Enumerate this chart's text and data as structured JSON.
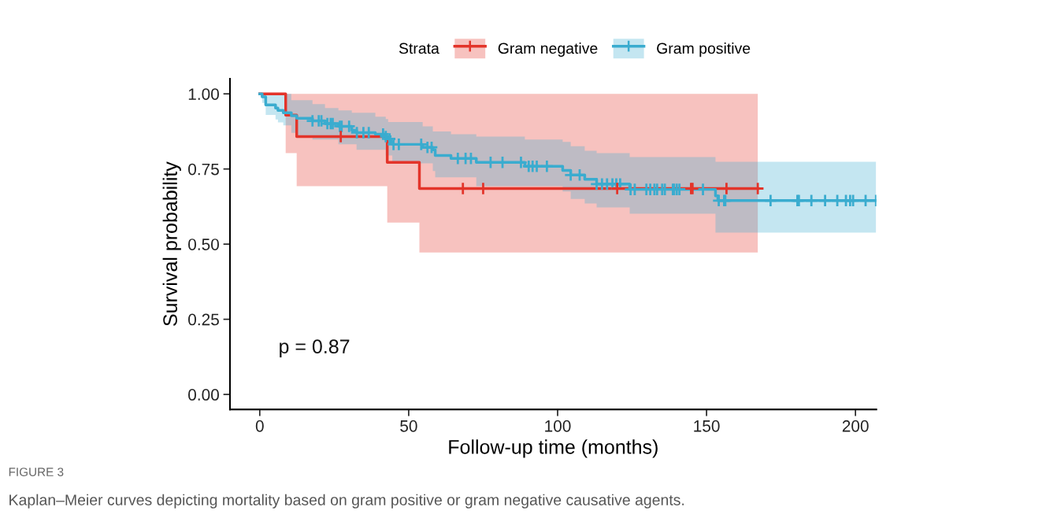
{
  "chart_data": {
    "type": "step",
    "xlabel": "Follow-up time (months)",
    "ylabel": "Survival probability",
    "legend_title": "Strata",
    "legend": "top",
    "grid": false,
    "xlim": [
      -10,
      207
    ],
    "xticks": [
      0,
      50,
      100,
      150,
      200
    ],
    "ylim": [
      -0.05,
      1.05
    ],
    "yticks": [
      {
        "value": 0,
        "label": "0.00"
      },
      {
        "value": 0.25,
        "label": "0.25"
      },
      {
        "value": 0.5,
        "label": "0.50"
      },
      {
        "value": 0.75,
        "label": "0.75"
      },
      {
        "value": 1,
        "label": "1.00"
      }
    ],
    "annotations": [
      "p = 0.87",
      "FIGURE 3",
      "Kaplan–Meier curves depicting mortality based on gram positive or gram negative causative agents."
    ],
    "series": [
      {
        "name": "Gram negative",
        "color": "#e3342a",
        "x": [
          0,
          8.7,
          12.4,
          42.8,
          53.6,
          167.2
        ],
        "values": [
          1.0,
          0.929,
          0.858,
          0.772,
          0.685,
          0.685
        ],
        "lower": [
          1.0,
          0.803,
          0.693,
          0.572,
          0.472,
          0.472
        ],
        "upper": [
          1.0,
          1.0,
          1.0,
          1.0,
          1.0,
          1.0
        ]
      },
      {
        "name": "Gram positive",
        "color": "#3aaccf",
        "x": [
          0,
          0.8,
          2,
          5.3,
          6.1,
          7.9,
          10.6,
          12.4,
          17.7,
          21.9,
          26.4,
          30.9,
          32.5,
          38.8,
          42.3,
          43.1,
          44.1,
          44.5,
          54.7,
          58.1,
          58.9,
          64.2,
          72.7,
          89.0,
          101.7,
          104.4,
          109.1,
          113.1,
          124.2,
          153.0,
          153.8,
          206.9
        ],
        "values": [
          1.0,
          0.99,
          0.963,
          0.953,
          0.945,
          0.937,
          0.927,
          0.919,
          0.91,
          0.901,
          0.892,
          0.879,
          0.871,
          0.866,
          0.858,
          0.85,
          0.84,
          0.832,
          0.822,
          0.814,
          0.795,
          0.785,
          0.772,
          0.759,
          0.745,
          0.73,
          0.716,
          0.7,
          0.682,
          0.661,
          0.645,
          0.645
        ],
        "lower": [
          1.0,
          0.97,
          0.93,
          0.915,
          0.905,
          0.895,
          0.87,
          0.86,
          0.848,
          0.848,
          0.832,
          0.832,
          0.814,
          0.814,
          0.795,
          0.795,
          0.795,
          0.769,
          0.769,
          0.743,
          0.722,
          0.722,
          0.693,
          0.693,
          0.675,
          0.65,
          0.635,
          0.622,
          0.601,
          0.538,
          0.538,
          0.538
        ],
        "upper": [
          1.0,
          1.0,
          1.0,
          1.0,
          1.0,
          1.0,
          0.979,
          0.979,
          0.966,
          0.953,
          0.945,
          0.937,
          0.937,
          0.924,
          0.916,
          0.906,
          0.906,
          0.906,
          0.892,
          0.875,
          0.875,
          0.866,
          0.858,
          0.848,
          0.84,
          0.826,
          0.811,
          0.803,
          0.79,
          0.774,
          0.774,
          0.774
        ]
      },
      {
        "type": "scatter",
        "color": "#e3342a",
        "marker": "cross",
        "x": [
          27.2,
          68.2,
          75.0,
          120.0,
          144.8,
          145.3,
          156.7,
          167.2
        ],
        "values": [
          0.858,
          0.685,
          0.685,
          0.685,
          0.685,
          0.685,
          0.685,
          0.685
        ]
      },
      {
        "type": "scatter",
        "color": "#3aaccf",
        "marker": "cross",
        "x": [
          17.7,
          19.8,
          20.7,
          22.7,
          23.8,
          24.5,
          26.9,
          27.5,
          30.0,
          32.6,
          34.8,
          36.6,
          41.4,
          42.3,
          43.6,
          44.9,
          46.7,
          54.2,
          56.3,
          57.7,
          66.5,
          69.1,
          70.9,
          77.5,
          81.5,
          87.7,
          90.3,
          91.6,
          93.0,
          96.4,
          104.4,
          107.4,
          113.1,
          114.9,
          116.6,
          118.4,
          119.7,
          121.0,
          124.5,
          125.9,
          129.8,
          131.1,
          132.5,
          133.4,
          135.1,
          136.0,
          138.7,
          139.1,
          140.0,
          140.9,
          148.8,
          154.1,
          155.9,
          156.3,
          171.5,
          180.5,
          181.0,
          185.2,
          189.8,
          193.9,
          196.8,
          198.2,
          199.2,
          203.4,
          206.9
        ],
        "values": [
          0.91,
          0.91,
          0.91,
          0.901,
          0.901,
          0.901,
          0.892,
          0.892,
          0.892,
          0.871,
          0.871,
          0.871,
          0.866,
          0.858,
          0.85,
          0.832,
          0.832,
          0.832,
          0.822,
          0.822,
          0.785,
          0.785,
          0.785,
          0.772,
          0.772,
          0.772,
          0.759,
          0.759,
          0.759,
          0.759,
          0.73,
          0.73,
          0.7,
          0.7,
          0.7,
          0.7,
          0.7,
          0.7,
          0.682,
          0.682,
          0.682,
          0.682,
          0.682,
          0.682,
          0.682,
          0.682,
          0.682,
          0.682,
          0.682,
          0.682,
          0.682,
          0.645,
          0.645,
          0.645,
          0.645,
          0.645,
          0.645,
          0.645,
          0.645,
          0.645,
          0.645,
          0.645,
          0.645,
          0.645,
          0.645
        ]
      }
    ]
  }
}
